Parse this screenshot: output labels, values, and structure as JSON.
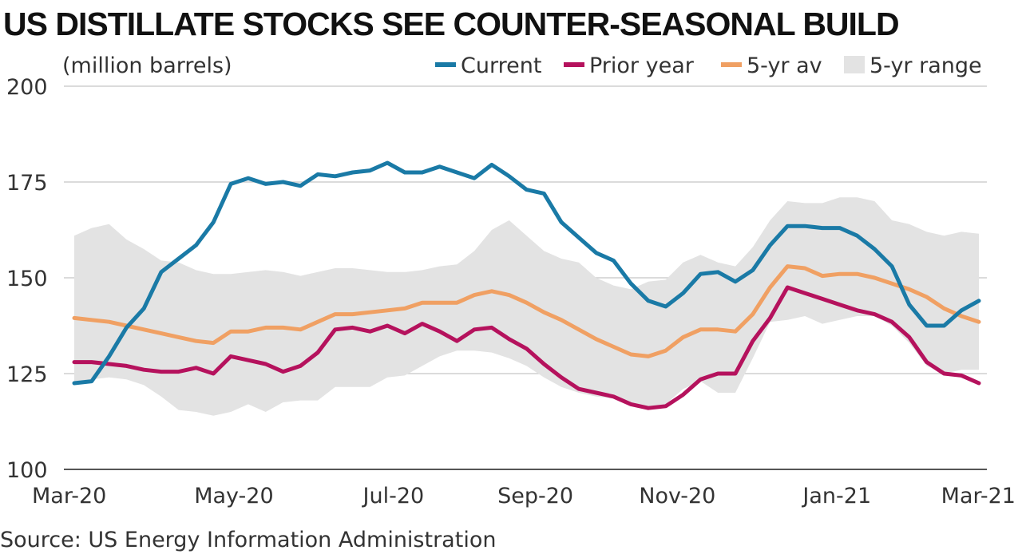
{
  "chart_data": {
    "type": "line",
    "title": "US DISTILLATE STOCKS SEE COUNTER-SEASONAL BUILD",
    "unit_label": "(million barrels)",
    "source": "Source: US Energy Information Administration",
    "x_tick_labels": [
      "Mar-20",
      "May-20",
      "Jul-20",
      "Sep-20",
      "Nov-20",
      "Jan-21",
      "Mar-21"
    ],
    "x_tick_weeks": [
      0,
      9,
      18,
      26,
      34,
      43,
      51
    ],
    "x_range_weeks": [
      0,
      51
    ],
    "ylim": [
      100,
      200
    ],
    "y_ticks": [
      100,
      125,
      150,
      175,
      200
    ],
    "grid": true,
    "legend_position": "top",
    "legend": [
      {
        "label": "Current",
        "color": "#1a7aa6",
        "type": "line"
      },
      {
        "label": "Prior year",
        "color": "#b5125d",
        "type": "line"
      },
      {
        "label": "5-yr av",
        "color": "#f0a063",
        "type": "line"
      },
      {
        "label": "5-yr range",
        "color": "#e3e3e3",
        "type": "area"
      }
    ],
    "series": [
      {
        "name": "Current",
        "color": "#1a7aa6",
        "values": [
          122.5,
          123,
          129.5,
          137,
          142,
          151.5,
          155,
          158.5,
          164.5,
          174.5,
          176,
          174.5,
          175,
          174,
          177,
          176.5,
          177.5,
          178,
          180,
          177.5,
          177.5,
          179,
          177.5,
          176,
          179.5,
          176.5,
          173,
          172,
          164.5,
          160.5,
          156.5,
          154.5,
          148.5,
          144,
          142.5,
          146,
          151,
          151.5,
          149,
          152,
          158.5,
          163.5,
          163.5,
          163,
          163,
          161,
          157.5,
          153,
          143,
          137.5,
          137.5,
          141.5,
          144
        ]
      },
      {
        "name": "Prior year",
        "color": "#b5125d",
        "values": [
          128,
          128,
          127.5,
          127,
          126,
          125.5,
          125.5,
          126.5,
          125,
          129.5,
          128.5,
          127.5,
          125.5,
          127,
          130.5,
          136.5,
          137,
          136,
          137.5,
          135.5,
          138,
          136,
          133.5,
          136.5,
          137,
          134,
          131.5,
          127.5,
          124,
          121,
          120,
          119,
          117,
          116,
          116.5,
          119.5,
          123.5,
          125,
          125,
          133.5,
          139.5,
          147.5,
          146,
          144.5,
          143,
          141.5,
          140.5,
          138.5,
          134.5,
          128,
          125,
          124.5,
          122.5
        ]
      },
      {
        "name": "5-yr av",
        "color": "#f0a063",
        "values": [
          139.5,
          139,
          138.5,
          137.5,
          136.5,
          135.5,
          134.5,
          133.5,
          133,
          136,
          136,
          137,
          137,
          136.5,
          138.5,
          140.5,
          140.5,
          141,
          141.5,
          142,
          143.5,
          143.5,
          143.5,
          145.5,
          146.5,
          145.5,
          143.5,
          141,
          139,
          136.5,
          134,
          132,
          130,
          129.5,
          131,
          134.5,
          136.5,
          136.5,
          136,
          140.5,
          147.5,
          153,
          152.5,
          150.5,
          151,
          151,
          150,
          148.5,
          147,
          145,
          142,
          140,
          138.5
        ]
      }
    ],
    "range_band": {
      "name": "5-yr range",
      "color": "#e3e3e3",
      "upper": [
        161,
        163,
        164,
        160,
        157.5,
        154.5,
        154,
        152,
        151,
        151,
        151.5,
        152,
        151.5,
        150.5,
        151.5,
        152.5,
        152.5,
        152,
        151.5,
        151.5,
        152,
        153,
        153.5,
        157,
        162.5,
        165,
        161,
        157,
        155,
        154,
        150,
        148,
        147,
        149,
        149.5,
        154,
        156,
        154,
        153,
        158,
        165,
        170,
        169.5,
        169.5,
        171,
        171,
        170,
        165,
        164,
        162,
        161,
        162,
        161.5
      ],
      "lower": [
        123,
        123.5,
        124,
        123.5,
        122,
        119,
        115.5,
        115,
        114,
        115,
        117,
        115,
        117.5,
        118,
        118,
        121.5,
        121.5,
        121.5,
        124,
        124.5,
        127,
        129.5,
        131,
        131,
        130.5,
        129,
        127,
        124,
        121.5,
        120,
        119,
        118.5,
        116.5,
        115.5,
        117,
        121,
        123,
        120,
        120,
        129,
        138.5,
        139,
        140,
        138,
        139,
        140,
        140,
        137.5,
        133,
        127,
        125,
        126,
        126
      ]
    }
  }
}
